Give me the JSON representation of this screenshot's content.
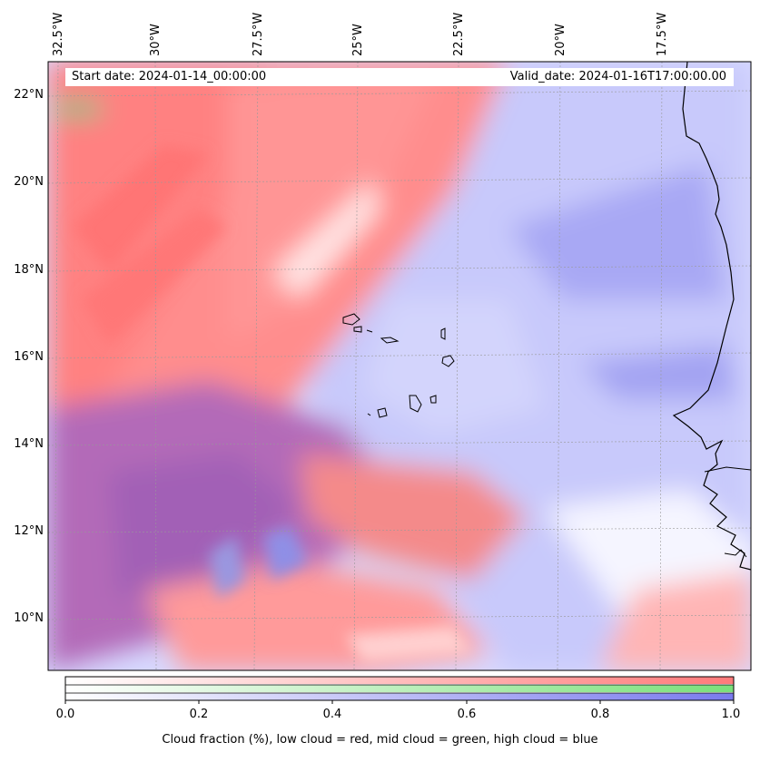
{
  "map": {
    "lon_ticks": [
      "32.5°W",
      "30°W",
      "27.5°W",
      "25°W",
      "22.5°W",
      "20°W",
      "17.5°W"
    ],
    "lat_ticks": [
      "22°N",
      "20°N",
      "18°N",
      "16°N",
      "14°N",
      "12°N",
      "10°N"
    ],
    "start_date": "Start date: 2024-01-14_00:00:00",
    "valid_date": "Valid_date: 2024-01-16T17:00:00.00",
    "layer_colors": {
      "low": "#ff7a7a",
      "mid": "#7ae07a",
      "high": "#7a7aee"
    },
    "coast_color": "#000000"
  },
  "colorbar": {
    "ticks": [
      "0.0",
      "0.2",
      "0.4",
      "0.6",
      "0.8",
      "1.0"
    ],
    "caption": "Cloud fraction (%), low cloud = red, mid cloud = green, high cloud = blue"
  }
}
